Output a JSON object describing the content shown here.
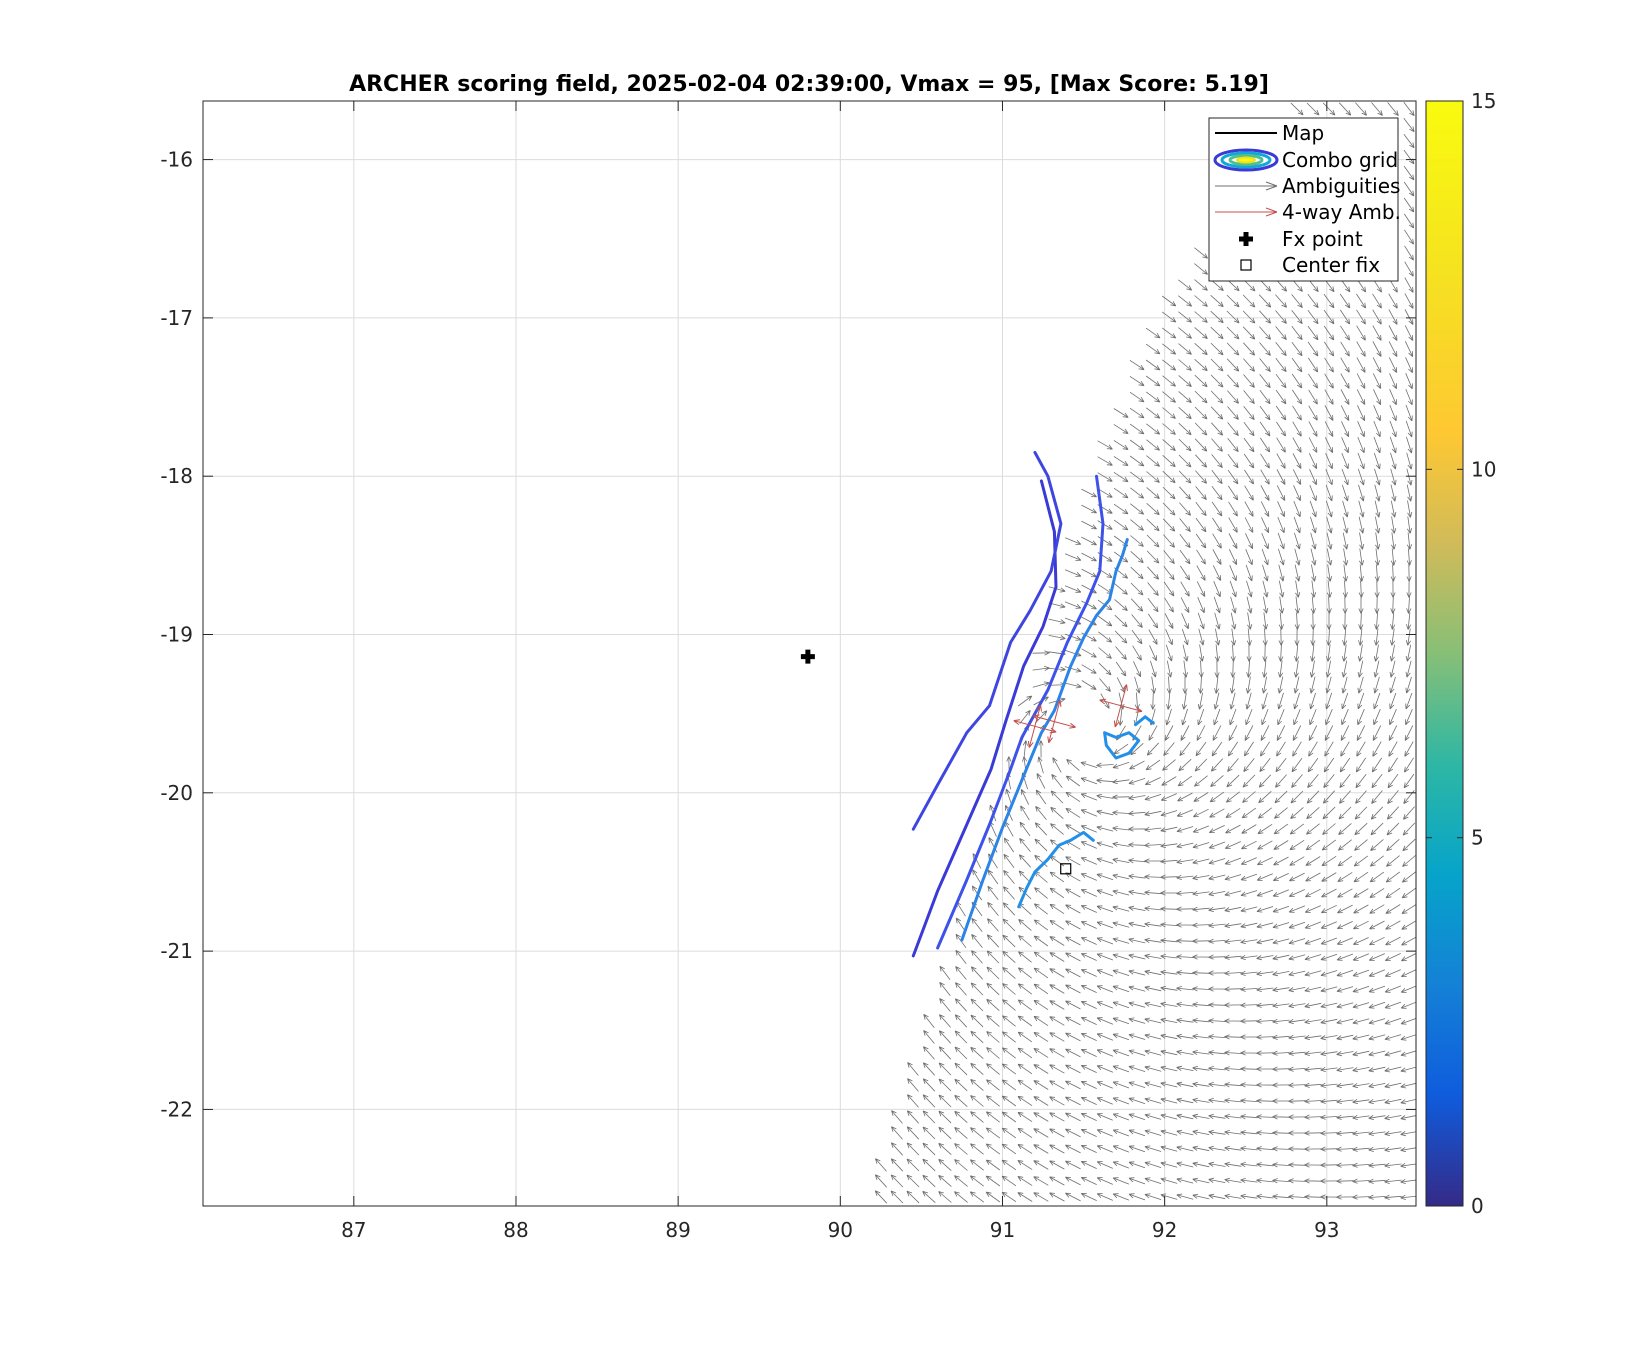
{
  "chart_data": {
    "type": "vector-field-map",
    "title": "ARCHER scoring field, 2025-02-04 02:39:00, Vmax = 95, [Max Score: 5.19]",
    "xlim": [
      86.07,
      93.55
    ],
    "ylim": [
      -22.61,
      -15.63
    ],
    "x_ticks": [
      87,
      88,
      89,
      90,
      91,
      92,
      93
    ],
    "y_ticks": [
      -16,
      -17,
      -18,
      -19,
      -20,
      -21,
      -22
    ],
    "grid": true,
    "colorbar": {
      "min": 0,
      "max": 15,
      "ticks": [
        0,
        5,
        10,
        15
      ],
      "colormap": "parula"
    },
    "legend": {
      "position": "top-right",
      "entries": [
        "Map",
        "Combo grid",
        "Ambiguities",
        "4-way Amb.",
        "Fx point",
        "Center fix"
      ]
    },
    "fx_point": {
      "x": 89.8,
      "y": -19.14
    },
    "center_fix": {
      "x": 91.39,
      "y": -20.48
    },
    "swath_edge": [
      [
        90.15,
        -22.61
      ],
      [
        90.6,
        -21.2
      ],
      [
        91.0,
        -19.9
      ],
      [
        91.3,
        -18.8
      ],
      [
        91.6,
        -17.8
      ],
      [
        92.0,
        -16.9
      ],
      [
        92.5,
        -16.1
      ],
      [
        92.85,
        -15.63
      ]
    ],
    "contours": [
      {
        "level": 2,
        "color": "#3a3ad6",
        "points": [
          [
            90.45,
            -21.03
          ],
          [
            90.6,
            -20.62
          ],
          [
            90.78,
            -20.2
          ],
          [
            90.93,
            -19.85
          ],
          [
            91.02,
            -19.55
          ],
          [
            91.13,
            -19.2
          ],
          [
            91.25,
            -18.95
          ],
          [
            91.33,
            -18.7
          ],
          [
            91.32,
            -18.35
          ],
          [
            91.24,
            -18.03
          ]
        ]
      },
      {
        "level": 2.5,
        "color": "#3f46e0",
        "points": [
          [
            90.45,
            -20.23
          ],
          [
            90.6,
            -19.95
          ],
          [
            90.78,
            -19.62
          ],
          [
            90.92,
            -19.45
          ],
          [
            91.05,
            -19.05
          ],
          [
            91.17,
            -18.85
          ],
          [
            91.3,
            -18.6
          ],
          [
            91.36,
            -18.3
          ],
          [
            91.28,
            -18.0
          ],
          [
            91.2,
            -17.85
          ]
        ]
      },
      {
        "level": 3,
        "color": "#3d52e8",
        "points": [
          [
            90.6,
            -20.98
          ],
          [
            90.78,
            -20.55
          ],
          [
            90.92,
            -20.2
          ],
          [
            91.05,
            -19.85
          ],
          [
            91.12,
            -19.65
          ],
          [
            91.28,
            -19.35
          ],
          [
            91.4,
            -19.05
          ],
          [
            91.52,
            -18.8
          ],
          [
            91.6,
            -18.6
          ],
          [
            91.62,
            -18.3
          ],
          [
            91.58,
            -18.0
          ]
        ]
      },
      {
        "level": 4,
        "color": "#2b84e6",
        "points": [
          [
            90.75,
            -20.93
          ],
          [
            90.88,
            -20.55
          ],
          [
            91.0,
            -20.22
          ],
          [
            91.12,
            -19.92
          ],
          [
            91.24,
            -19.62
          ],
          [
            91.32,
            -19.48
          ],
          [
            91.42,
            -19.2
          ],
          [
            91.5,
            -19.02
          ],
          [
            91.58,
            -18.88
          ],
          [
            91.66,
            -18.78
          ],
          [
            91.7,
            -18.6
          ],
          [
            91.74,
            -18.5
          ],
          [
            91.77,
            -18.4
          ]
        ]
      },
      {
        "level": 4.5,
        "color": "#2290e8",
        "points": [
          [
            91.1,
            -20.72
          ],
          [
            91.15,
            -20.6
          ],
          [
            91.2,
            -20.5
          ],
          [
            91.28,
            -20.42
          ],
          [
            91.35,
            -20.33
          ],
          [
            91.42,
            -20.3
          ],
          [
            91.5,
            -20.25
          ],
          [
            91.56,
            -20.3
          ]
        ]
      },
      {
        "level": 4.5,
        "color": "#2290e8",
        "points": [
          [
            91.63,
            -19.62
          ],
          [
            91.7,
            -19.65
          ],
          [
            91.78,
            -19.62
          ],
          [
            91.84,
            -19.67
          ],
          [
            91.78,
            -19.75
          ],
          [
            91.7,
            -19.78
          ],
          [
            91.64,
            -19.7
          ],
          [
            91.63,
            -19.62
          ]
        ]
      },
      {
        "level": 4.5,
        "color": "#2290e8",
        "points": [
          [
            91.82,
            -19.57
          ],
          [
            91.88,
            -19.52
          ],
          [
            91.93,
            -19.56
          ]
        ]
      }
    ],
    "four_way_ambiguities": [
      {
        "x": 91.2,
        "y": -19.58
      },
      {
        "x": 91.32,
        "y": -19.55
      },
      {
        "x": 91.73,
        "y": -19.45
      }
    ]
  }
}
